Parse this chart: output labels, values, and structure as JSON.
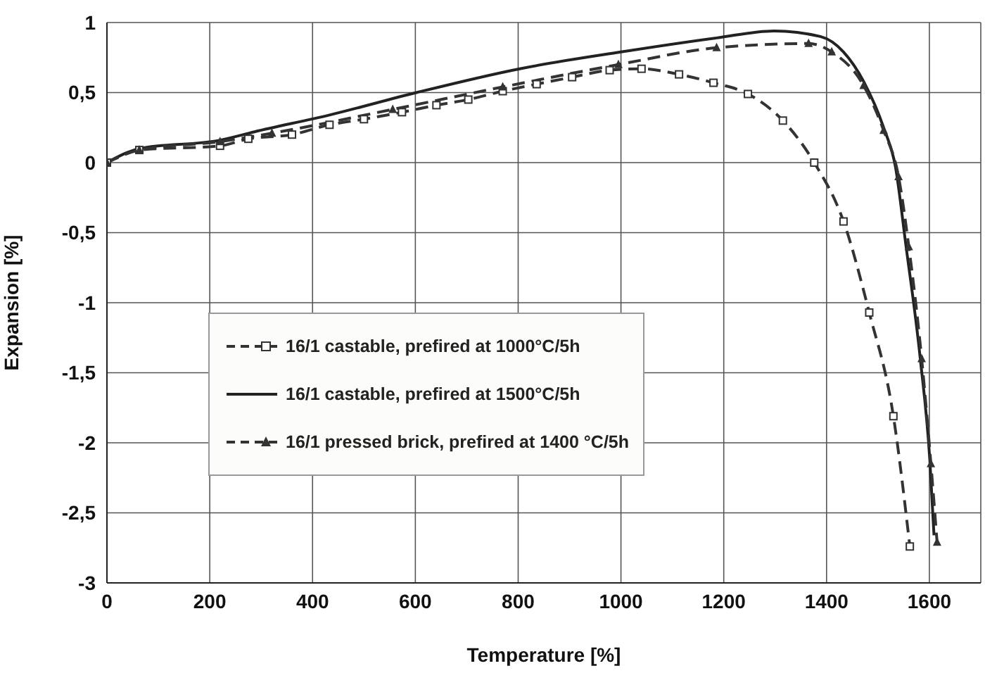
{
  "chart_data": {
    "type": "line",
    "xlabel": "Temperature [%]",
    "ylabel": "Expansion [%]",
    "xlim": [
      0,
      1700
    ],
    "xticks": [
      0,
      200,
      400,
      600,
      800,
      1000,
      1200,
      1400,
      1600
    ],
    "ylim": [
      -3,
      1
    ],
    "yticks": [
      1,
      {
        "value": 0.5,
        "label": "0,5"
      },
      0,
      {
        "value": -0.5,
        "label": "-0,5"
      },
      -1,
      {
        "value": -1.5,
        "label": "-1,5"
      },
      -2,
      {
        "value": -2.5,
        "label": "-2,5"
      },
      -3
    ],
    "grid": true,
    "legend": "center",
    "series": [
      {
        "name": "16/1 castable, prefired at 1000°C/5h",
        "color": "#333333",
        "marker": "square",
        "line_style": "dashed",
        "x": [
          0,
          63,
          220,
          275,
          360,
          433,
          500,
          574,
          641,
          703,
          770,
          836,
          905,
          978,
          1040,
          1113,
          1180,
          1247,
          1315,
          1376,
          1433,
          1483,
          1530,
          1562
        ],
        "values": [
          0,
          0.09,
          0.12,
          0.17,
          0.2,
          0.27,
          0.31,
          0.36,
          0.41,
          0.45,
          0.51,
          0.56,
          0.61,
          0.66,
          0.67,
          0.63,
          0.57,
          0.49,
          0.3,
          0,
          -0.42,
          -1.07,
          -1.81,
          -2.74
        ]
      },
      {
        "name": "16/1 castable, prefired at 1500°C/5h",
        "color": "#222222",
        "marker": "none",
        "line_style": "solid",
        "x": [
          0,
          63,
          220,
          287,
          433,
          602,
          803,
          1000,
          1186,
          1298,
          1388,
          1433,
          1472,
          1511,
          1534,
          1554,
          1582,
          1601,
          1609
        ],
        "values": [
          0,
          0.1,
          0.16,
          0.22,
          0.34,
          0.5,
          0.67,
          0.79,
          0.89,
          0.94,
          0.9,
          0.79,
          0.58,
          0.25,
          -0.03,
          -0.58,
          -1.39,
          -2.13,
          -2.66
        ]
      },
      {
        "name": "16/1 pressed brick, prefired at 1400 °C/5h",
        "color": "#333333",
        "marker": "triangle",
        "line_style": "dashed",
        "x": [
          0,
          63,
          220,
          321,
          556,
          770,
          995,
          1186,
          1365,
          1410,
          1472,
          1511,
          1540,
          1560,
          1585,
          1603,
          1615
        ],
        "values": [
          0,
          0.09,
          0.15,
          0.21,
          0.38,
          0.54,
          0.7,
          0.82,
          0.85,
          0.79,
          0.55,
          0.23,
          -0.1,
          -0.6,
          -1.4,
          -2.15,
          -2.71
        ]
      }
    ]
  }
}
